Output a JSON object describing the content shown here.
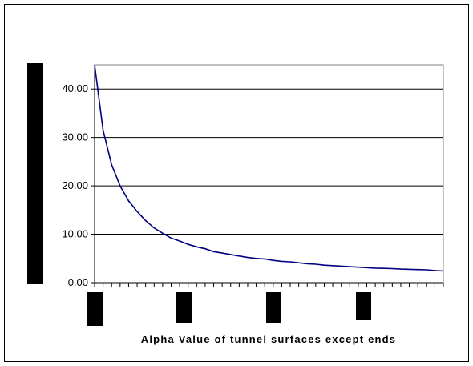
{
  "chart_data": {
    "type": "line",
    "title": "",
    "xlabel": "Alpha Value of tunnel surfaces except ends",
    "ylabel": "",
    "ylim": [
      0,
      45
    ],
    "yticks": [
      "0.00",
      "10.00",
      "20.00",
      "30.00",
      "40.00"
    ],
    "ytick_values": [
      0,
      10,
      20,
      30,
      40
    ],
    "grid": "horizontal",
    "legend": "none",
    "series": [
      {
        "color": "#000080",
        "values": [
          45.0,
          31.5,
          24.4,
          20.0,
          16.9,
          14.7,
          12.8,
          11.3,
          10.2,
          9.2,
          8.6,
          7.9,
          7.4,
          7.0,
          6.4,
          6.1,
          5.8,
          5.5,
          5.2,
          5.0,
          4.9,
          4.6,
          4.4,
          4.3,
          4.1,
          3.9,
          3.8,
          3.6,
          3.5,
          3.4,
          3.3,
          3.2,
          3.1,
          3.0,
          2.95,
          2.9,
          2.8,
          2.75,
          2.7,
          2.65,
          2.5,
          2.4
        ]
      }
    ]
  }
}
